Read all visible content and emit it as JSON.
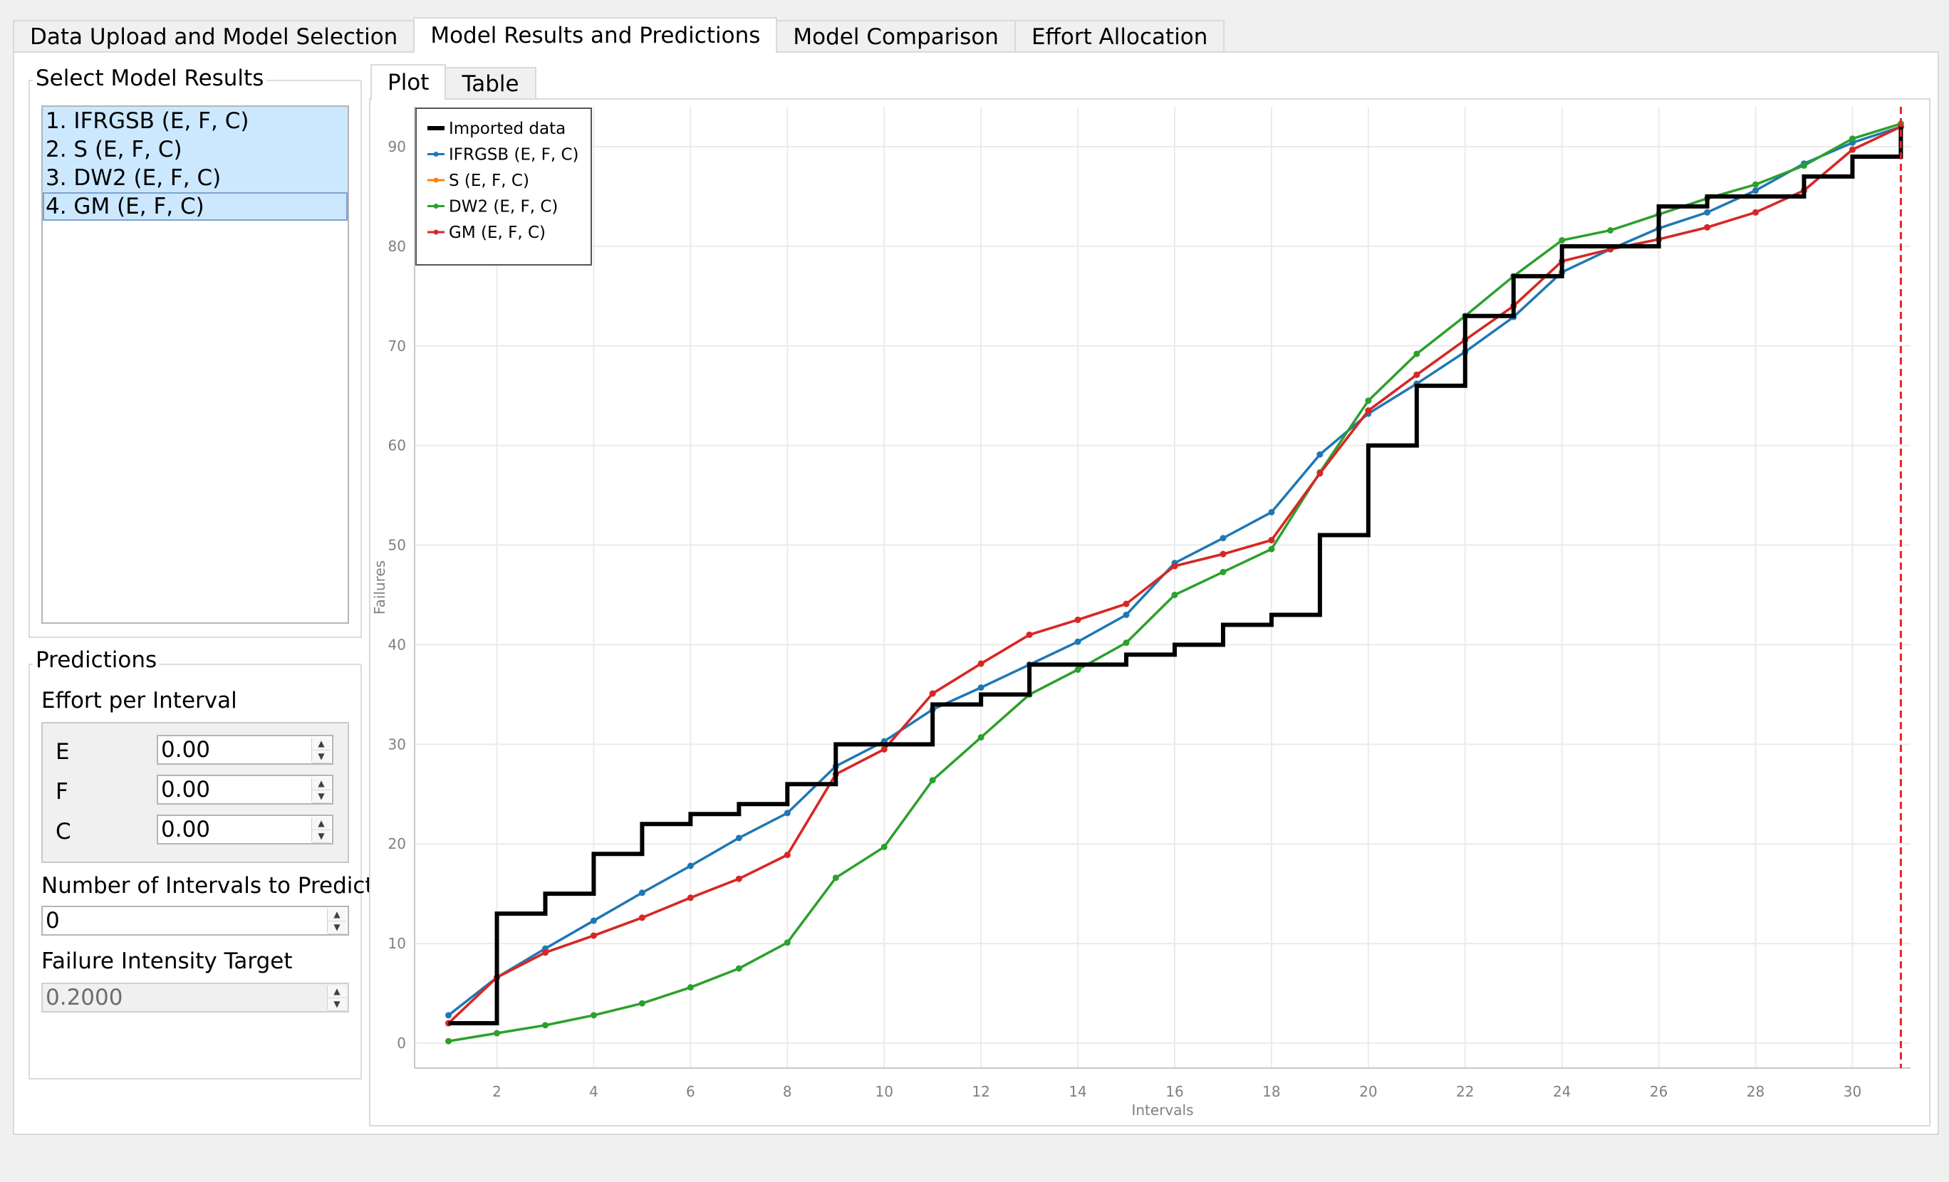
{
  "tabs": [
    {
      "label": "Data Upload and Model Selection",
      "active": false
    },
    {
      "label": "Model Results and Predictions",
      "active": true
    },
    {
      "label": "Model Comparison",
      "active": false
    },
    {
      "label": "Effort Allocation",
      "active": false
    }
  ],
  "model_results": {
    "title": "Select Model Results",
    "items": [
      "1. IFRGSB (E, F, C)",
      "2. S (E, F, C)",
      "3. DW2 (E, F, C)",
      "4. GM (E, F, C)"
    ]
  },
  "predictions": {
    "title": "Predictions",
    "effort_label": "Effort per Interval",
    "e_label": "E",
    "e_value": "0.00",
    "f_label": "F",
    "f_value": "0.00",
    "c_label": "C",
    "c_value": "0.00",
    "intervals_label": "Number of Intervals to Predict",
    "intervals_value": "0",
    "intensity_label": "Failure Intensity Target",
    "intensity_value": "0.2000"
  },
  "subtabs": [
    {
      "label": "Plot",
      "active": true
    },
    {
      "label": "Table",
      "active": false
    }
  ],
  "spin_glyphs": {
    "up": "▲",
    "down": "▼"
  },
  "chart_data": {
    "type": "line",
    "xlabel": "Intervals",
    "ylabel": "Failures",
    "xlim": [
      0.3,
      31.2
    ],
    "ylim": [
      -2.5,
      94
    ],
    "xticks": [
      2,
      4,
      6,
      8,
      10,
      12,
      14,
      16,
      18,
      20,
      22,
      24,
      26,
      28,
      30
    ],
    "yticks": [
      0,
      10,
      20,
      30,
      40,
      50,
      60,
      70,
      80,
      90
    ],
    "grid": true,
    "legend_position": "top-left",
    "prediction_marker_x": 31,
    "prediction_marker_color": "#e8242a",
    "imported": {
      "name": "Imported data",
      "color": "#000000",
      "x": [
        1,
        2,
        3,
        4,
        5,
        6,
        7,
        8,
        9,
        10,
        11,
        12,
        13,
        14,
        15,
        16,
        17,
        18,
        19,
        20,
        21,
        22,
        23,
        24,
        25,
        26,
        27,
        28,
        29,
        30,
        31
      ],
      "y": [
        2,
        13,
        15,
        19,
        22,
        23,
        24,
        26,
        30,
        30,
        34,
        35,
        38,
        38,
        39,
        40,
        42,
        43,
        51,
        60,
        66,
        73,
        77,
        80,
        80,
        84,
        85,
        85,
        87,
        89,
        92
      ]
    },
    "series": [
      {
        "name": "IFRGSB (E, F, C)",
        "color": "#1f77b4",
        "values": [
          2.8,
          6.6,
          9.5,
          12.3,
          15.1,
          17.8,
          20.6,
          23.1,
          27.8,
          30.3,
          33.5,
          35.7,
          38.0,
          40.3,
          43.0,
          48.2,
          50.7,
          53.3,
          59.1,
          63.2,
          66.2,
          69.4,
          72.9,
          77.4,
          79.7,
          81.8,
          83.4,
          85.6,
          88.3,
          90.4,
          92.0
        ]
      },
      {
        "name": "S (E, F, C)",
        "color": "#ff7f0e",
        "values": [
          2.0,
          6.6,
          9.1,
          10.8,
          12.6,
          14.6,
          16.5,
          18.9,
          27.0,
          29.5,
          35.1,
          38.1,
          41.0,
          42.5,
          44.1,
          47.9,
          49.1,
          50.5,
          57.2,
          63.5,
          67.1,
          70.6,
          74.0,
          78.5,
          79.7,
          80.7,
          81.9,
          83.4,
          85.6,
          89.7,
          92.0
        ]
      },
      {
        "name": "DW2 (E, F, C)",
        "color": "#2ca02c",
        "values": [
          0.2,
          1.0,
          1.8,
          2.8,
          4.0,
          5.6,
          7.5,
          10.1,
          16.6,
          19.7,
          26.4,
          30.7,
          35.0,
          37.5,
          40.2,
          45.0,
          47.3,
          49.6,
          57.3,
          64.5,
          69.2,
          73.0,
          77.0,
          80.6,
          81.6,
          83.2,
          84.8,
          86.2,
          88.1,
          90.8,
          92.3
        ]
      },
      {
        "name": "GM (E, F, C)",
        "color": "#d62728",
        "values": [
          2.0,
          6.6,
          9.1,
          10.8,
          12.6,
          14.6,
          16.5,
          18.9,
          27.0,
          29.5,
          35.1,
          38.1,
          41.0,
          42.5,
          44.1,
          47.9,
          49.1,
          50.5,
          57.2,
          63.5,
          67.1,
          70.6,
          74.0,
          78.5,
          79.7,
          80.7,
          81.9,
          83.4,
          85.6,
          89.7,
          92.0
        ]
      }
    ]
  }
}
